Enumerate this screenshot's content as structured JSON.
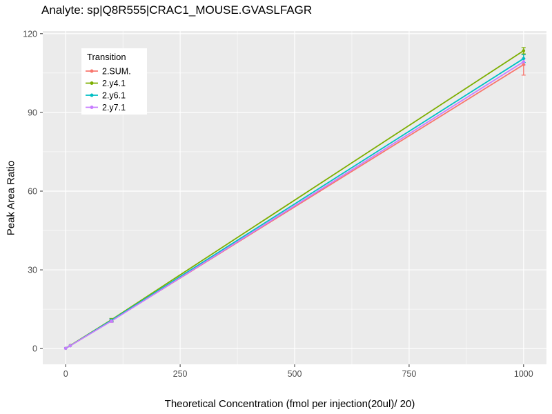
{
  "chart_data": {
    "type": "line",
    "title": "Analyte: sp|Q8R555|CRAC1_MOUSE.GVASLFAGR",
    "xlabel": "Theoretical Concentration (fmol per injection(20ul)/ 20)",
    "ylabel": "Peak Area Ratio",
    "legend_title": "Transition",
    "legend_position": "top-left-inset",
    "grid": true,
    "panel_background": "#EBEBEB",
    "grid_color": "#FFFFFF",
    "tick_label_color": "#4D4D4D",
    "tick_mark_color": "#333333",
    "text_color": "#000000",
    "xlim": [
      -50,
      1050
    ],
    "ylim": [
      -6,
      121
    ],
    "x_ticks": [
      0,
      250,
      500,
      750,
      1000
    ],
    "y_ticks": [
      0,
      30,
      60,
      90,
      120
    ],
    "x_minor_ticks": [
      125,
      375,
      625,
      875
    ],
    "y_minor_ticks": [
      15,
      45,
      75,
      105
    ],
    "x": [
      0,
      10,
      100,
      1000
    ],
    "series": [
      {
        "name": "2.SUM.",
        "color": "#F8766D",
        "values": [
          0.1,
          1.1,
          10.6,
          108.2
        ],
        "errors": [
          0,
          0,
          0.6,
          4.0
        ]
      },
      {
        "name": "2.y4.1",
        "color": "#7CAE00",
        "values": [
          0.1,
          1.2,
          11.0,
          113.5
        ],
        "errors": [
          0,
          0,
          0.5,
          1.2
        ]
      },
      {
        "name": "2.y6.1",
        "color": "#00BFC4",
        "values": [
          0.1,
          1.1,
          10.8,
          110.5
        ],
        "errors": [
          0,
          0,
          0.5,
          1.5
        ]
      },
      {
        "name": "2.y7.1",
        "color": "#C77CFF",
        "values": [
          0.1,
          1.1,
          10.5,
          109.3
        ],
        "errors": [
          0,
          0,
          0.5,
          1.2
        ]
      }
    ]
  }
}
